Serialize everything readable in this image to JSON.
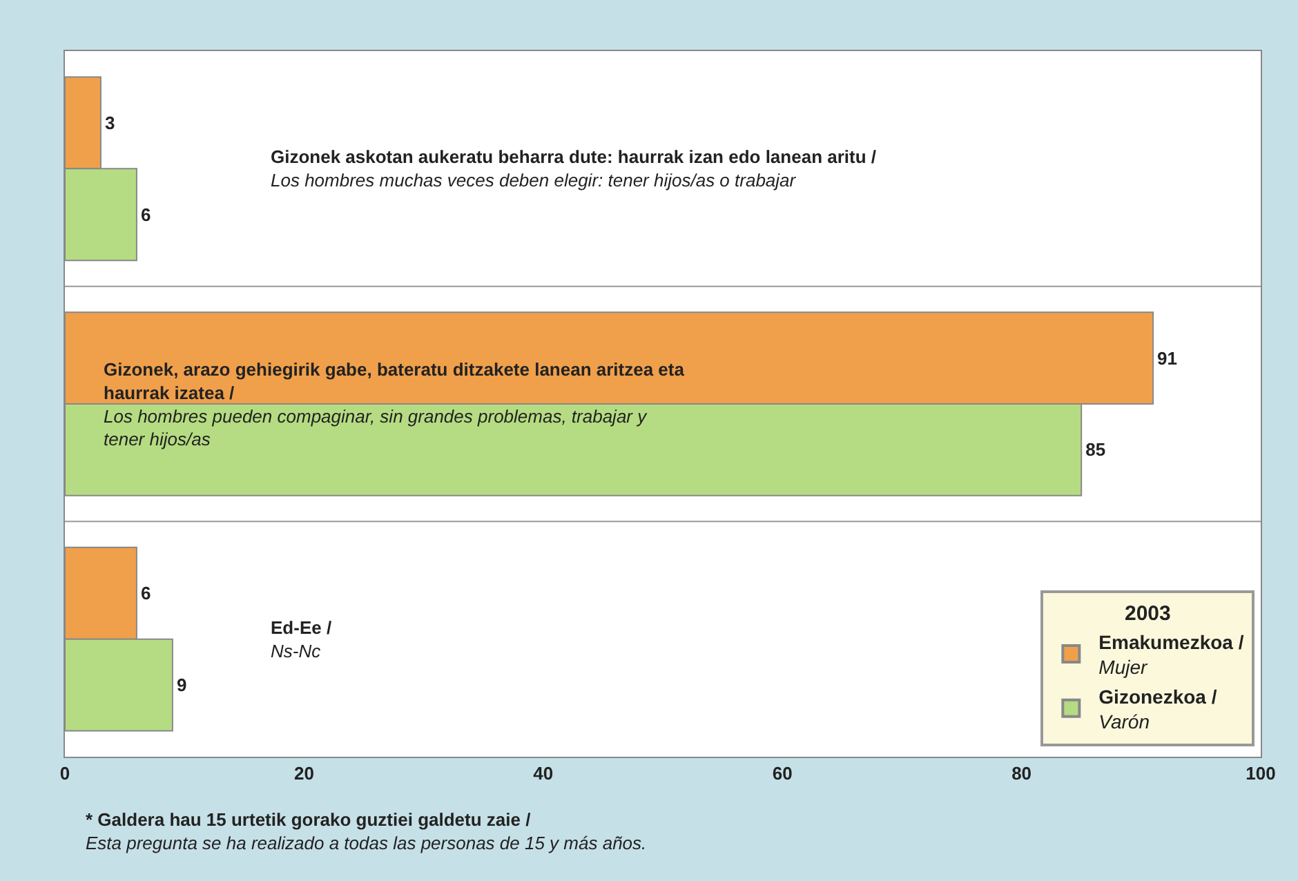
{
  "chart_data": {
    "type": "bar",
    "orientation": "horizontal",
    "categories": [
      "Gizonek askotan aukeratu beharra dute: haurrak izan edo lanean aritu /\nLos hombres muchas veces deben elegir: tener hijos/as o trabajar",
      "Gizonek, arazo gehiegirik gabe, bateratu ditzakete lanean aritzea eta\nhaurrak izatea /\nLos hombres pueden compaginar, sin grandes problemas, trabajar y\ntener hijos/as",
      "Ed-Ee /\nNs-Nc"
    ],
    "series": [
      {
        "name": "Emakumezkoa /\nMujer",
        "color": "#f0a04b",
        "values": [
          3,
          91,
          6
        ]
      },
      {
        "name": "Gizonezkoa /\nVarón",
        "color": "#b5dc82",
        "values": [
          6,
          85,
          9
        ]
      }
    ],
    "xlim": [
      0,
      100
    ],
    "xticks": [
      0,
      20,
      40,
      60,
      80,
      100
    ],
    "data_labels": true,
    "legend": "bottom right",
    "legend_title": "2003",
    "tick_labels": "x",
    "annotations": [
      "* Galdera hau 15 urtetik gorako guztiei galdetu zaie /\nEsta pregunta se ha realizado a todas las personas de 15 y más años."
    ]
  }
}
